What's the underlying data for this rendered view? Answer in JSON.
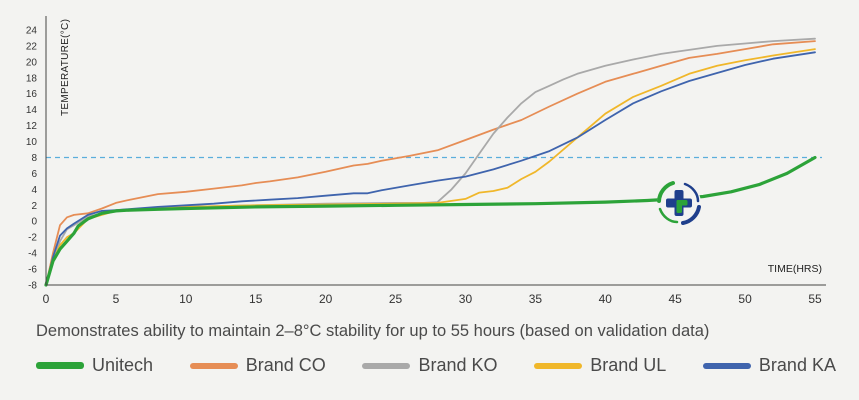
{
  "caption": "Demonstrates ability to maintain 2–8°C stability for up to 55 hours (based on validation data)",
  "colors": {
    "Unitech": "#2ca339",
    "Brand CO": "#e68d55",
    "Brand KO": "#a9a9a9",
    "Brand UL": "#f0b72a",
    "Brand KA": "#3f64ad",
    "threshold": "#5aaedc",
    "axis": "#444444",
    "background": "#f3f3f1"
  },
  "logo": {
    "icon": "medical-cross-leaf-logo"
  },
  "chart_data": {
    "type": "line",
    "xlabel": "TIME(HRS)",
    "ylabel": "TEMPERATURE(°C)",
    "xlim": [
      0,
      55.5
    ],
    "ylim": [
      -8,
      25
    ],
    "xticks": [
      0,
      5,
      10,
      15,
      20,
      25,
      30,
      35,
      40,
      45,
      50,
      55
    ],
    "yticks": [
      -8,
      -6,
      -4,
      -2,
      0,
      2,
      4,
      6,
      8,
      10,
      12,
      14,
      16,
      18,
      20,
      22,
      24
    ],
    "grid": false,
    "legend_position": "bottom",
    "threshold": {
      "y": 8,
      "style": "dashed"
    },
    "series": [
      {
        "name": "Brand CO",
        "x": [
          0,
          0.5,
          1,
          1.5,
          2,
          3,
          4,
          5,
          6,
          8,
          10,
          12,
          14,
          15,
          16,
          18,
          20,
          22,
          23,
          24,
          26,
          28,
          30,
          32,
          34,
          36,
          38,
          40,
          42,
          44,
          46,
          48,
          50,
          52,
          55
        ],
        "y": [
          -8,
          -4,
          -0.5,
          0.5,
          0.8,
          1,
          1.6,
          2.3,
          2.7,
          3.4,
          3.7,
          4.1,
          4.5,
          4.8,
          5,
          5.5,
          6.2,
          7,
          7.2,
          7.6,
          8.2,
          8.9,
          10.2,
          11.5,
          12.7,
          14.4,
          16,
          17.5,
          18.5,
          19.5,
          20.5,
          21,
          21.6,
          22.2,
          22.6
        ]
      },
      {
        "name": "Brand KO",
        "x": [
          0,
          0.5,
          1,
          1.5,
          2,
          3,
          5,
          8,
          10,
          15,
          20,
          25,
          27,
          28,
          29,
          30,
          31,
          32,
          33,
          34,
          35,
          36,
          37,
          38,
          40,
          42,
          44,
          46,
          48,
          50,
          52,
          55
        ],
        "y": [
          -8,
          -5,
          -2.5,
          -1,
          -0.5,
          0.6,
          1.3,
          1.6,
          1.8,
          2,
          2.2,
          2.3,
          2.3,
          2.4,
          4,
          6,
          8.5,
          11,
          13,
          14.8,
          16.2,
          17,
          17.8,
          18.5,
          19.5,
          20.3,
          21,
          21.5,
          22,
          22.3,
          22.6,
          22.9
        ]
      },
      {
        "name": "Brand UL",
        "x": [
          0,
          0.5,
          1,
          1.5,
          2,
          3,
          5,
          8,
          10,
          15,
          20,
          25,
          28,
          30,
          31,
          32,
          33,
          34,
          35,
          36,
          38,
          40,
          42,
          44,
          46,
          48,
          50,
          52,
          55
        ],
        "y": [
          -8,
          -5,
          -3,
          -2,
          -1.5,
          0.3,
          1.3,
          1.6,
          1.8,
          2,
          2.1,
          2.2,
          2.3,
          2.8,
          3.6,
          3.8,
          4.2,
          5.3,
          6.2,
          7.5,
          10.5,
          13.5,
          15.6,
          17,
          18.5,
          19.5,
          20.2,
          20.8,
          21.6
        ]
      },
      {
        "name": "Brand KA",
        "x": [
          0,
          0.5,
          1,
          1.5,
          2,
          3,
          4,
          5,
          8,
          10,
          12,
          14,
          16,
          18,
          20,
          22,
          23,
          24,
          26,
          28,
          30,
          32,
          34,
          36,
          38,
          40,
          42,
          44,
          46,
          48,
          50,
          52,
          55
        ],
        "y": [
          -8,
          -4.5,
          -1.8,
          -0.9,
          -0.3,
          0.8,
          1.3,
          1.4,
          1.8,
          2,
          2.2,
          2.5,
          2.7,
          2.9,
          3.2,
          3.5,
          3.5,
          3.9,
          4.5,
          5.1,
          5.6,
          6.5,
          7.6,
          8.8,
          10.5,
          12.7,
          14.8,
          16.3,
          17.6,
          18.6,
          19.6,
          20.4,
          21.2
        ]
      },
      {
        "name": "Unitech",
        "x": [
          0,
          0.5,
          1,
          1.5,
          2,
          2.3,
          3,
          4,
          5,
          6,
          8,
          10,
          15,
          20,
          25,
          30,
          35,
          40,
          43,
          45,
          47,
          49,
          51,
          53,
          55
        ],
        "y": [
          -8,
          -5,
          -3.5,
          -2.5,
          -1.5,
          -0.6,
          0.3,
          1,
          1.3,
          1.4,
          1.5,
          1.6,
          1.8,
          1.9,
          2,
          2.1,
          2.2,
          2.4,
          2.6,
          2.8,
          3.1,
          3.7,
          4.6,
          6,
          8
        ]
      }
    ]
  }
}
